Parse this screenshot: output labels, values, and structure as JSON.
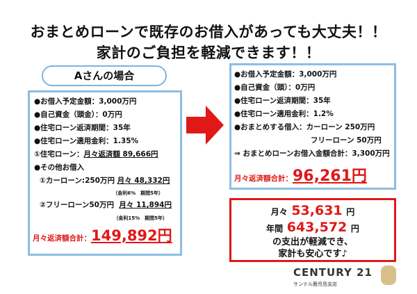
{
  "title": {
    "line1": "おまとめローンで既存のお借入があっても大丈夫！！",
    "line2": "家計のご負担を軽減できます！！"
  },
  "watermark": {
    "brand": "CENTURY 21",
    "branch": "サンテル鹿児島支店"
  },
  "left": {
    "header": "Aさんの場合",
    "lines": [
      "●お借入予定金額：3,000万円",
      "●自己資金（頭金）：0万円",
      "●住宅ローン返済期間：35年",
      "●住宅ローン適用金利：1.35%"
    ],
    "mortgage_label": "①住宅ローン：",
    "mortgage_value": "月々返済額 89,666円",
    "other": "●その他お借入",
    "car_label": "①カーローン:250万円",
    "car_value": "月々 48,332円",
    "car_note": "（金利6%　期間5年）",
    "free_label": "②フリーローン50万円",
    "free_value": "月々 11,894円",
    "free_note": "（金利15%　期間5年）",
    "total_label": "月々返済額合計：",
    "total_value": "149,892円"
  },
  "right": {
    "lines": [
      "●お借入予定金額：3,000万円",
      "●自己資金（頭）：0万円",
      "●住宅ローン返済期間：35年",
      "●住宅ローン適用金利：1.2%",
      "●おまとめする借入：カーローン 250万円"
    ],
    "line_free": "フリーローン 50万円",
    "line_total": "⇒ おまとめローンお借入金額合計：3,300万円",
    "total_label": "月々返済額合計：",
    "total_value": "96,261円"
  },
  "savings": {
    "monthly_label": "月々",
    "monthly_value": "53,631",
    "yen": "円",
    "yearly_label": "年間",
    "yearly_value": "643,572",
    "line1": "の支出が軽減でき、",
    "line2": "家計も安心です♪"
  },
  "logo": {
    "brand": "CENTURY 21",
    "branch": "サンテル鹿児島支店"
  },
  "colors": {
    "accent_red": "#e01818",
    "box_blue": "#8bbde3"
  }
}
